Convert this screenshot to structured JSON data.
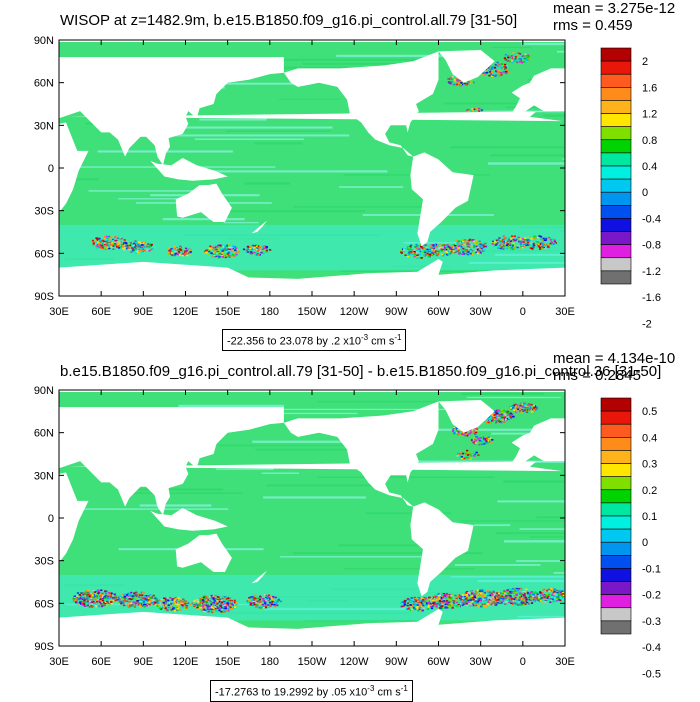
{
  "chart_data": [
    {
      "type": "heatmap",
      "title": "WISOP at z=1482.9m, b.e15.B1850.f09_g16.pi_control.all.79 [31-50]",
      "stats": {
        "mean": "mean = 3.275e-12",
        "rms": "rms = 0.459"
      },
      "x_ticks": [
        "30E",
        "60E",
        "90E",
        "120E",
        "150E",
        "180",
        "150W",
        "120W",
        "90W",
        "60W",
        "30W",
        "0",
        "30E"
      ],
      "y_ticks": [
        "90N",
        "60N",
        "30N",
        "0",
        "30S",
        "60S",
        "90S"
      ],
      "colorbar": {
        "labels": [
          "2",
          "1.6",
          "1.2",
          "0.8",
          "0.4",
          "0",
          "-0.4",
          "-0.8",
          "-1.2",
          "-1.6",
          "-2"
        ],
        "colors": [
          "#b30000",
          "#e8170a",
          "#ff5a1f",
          "#ff8c1a",
          "#ffb31a",
          "#ffe600",
          "#7fe000",
          "#00d400",
          "#00e8a0",
          "#00f0e0",
          "#00c8f0",
          "#0096f0",
          "#0050f0",
          "#1010e0",
          "#7a18c8",
          "#e020e0",
          "#c8c8c8",
          "#707070"
        ]
      },
      "range_text": "-22.356 to 23.078 by .2 x10",
      "range_exp": "-3",
      "range_units": " cm s",
      "range_units_exp": "-1"
    },
    {
      "type": "heatmap",
      "title": "b.e15.B1850.f09_g16.pi_control.all.79 [31-50] - b.e15.B1850.f09_g16.pi_control.36 [31-50]",
      "stats": {
        "mean": "mean = 4.134e-10",
        "rms": "rms = 0.2845"
      },
      "x_ticks": [
        "30E",
        "60E",
        "90E",
        "120E",
        "150E",
        "180",
        "150W",
        "120W",
        "90W",
        "60W",
        "30W",
        "0",
        "30E"
      ],
      "y_ticks": [
        "90N",
        "60N",
        "30N",
        "0",
        "30S",
        "60S",
        "90S"
      ],
      "colorbar": {
        "labels": [
          "0.5",
          "0.4",
          "0.3",
          "0.2",
          "0.1",
          "0",
          "-0.1",
          "-0.2",
          "-0.3",
          "-0.4",
          "-0.5"
        ],
        "colors": [
          "#b30000",
          "#e8170a",
          "#ff5a1f",
          "#ff8c1a",
          "#ffb31a",
          "#ffe600",
          "#7fe000",
          "#00d400",
          "#00e8a0",
          "#00f0e0",
          "#00c8f0",
          "#0096f0",
          "#0050f0",
          "#1010e0",
          "#7a18c8",
          "#e020e0",
          "#c8c8c8",
          "#707070"
        ]
      },
      "range_text": "-17.2763 to 19.2992 by .05 x10",
      "range_exp": "-3",
      "range_units": " cm s",
      "range_units_exp": "-1"
    }
  ]
}
